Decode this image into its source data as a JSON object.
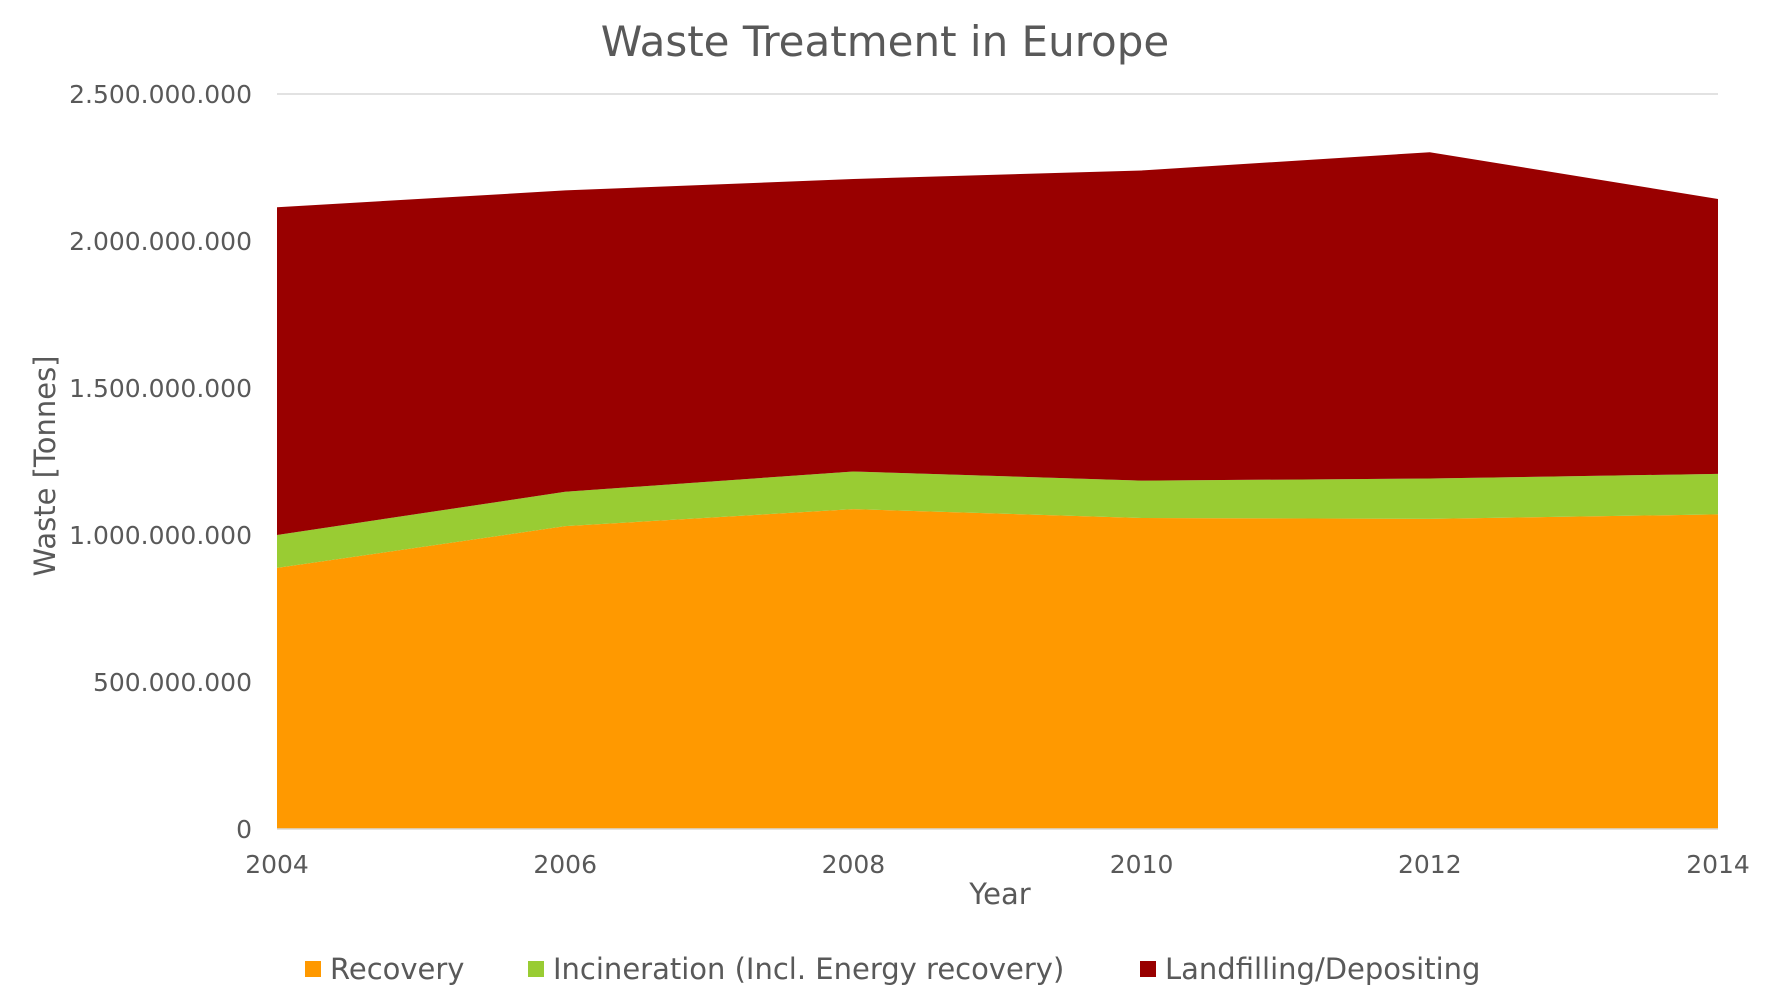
{
  "chart_data": {
    "type": "area",
    "stacked": true,
    "title": "Waste Treatment in Europe",
    "xlabel": "Year",
    "ylabel": "Waste [Tonnes]",
    "x": [
      2004,
      2006,
      2008,
      2010,
      2012,
      2014
    ],
    "x_tick_labels": [
      "2004",
      "2006",
      "2008",
      "2010",
      "2012",
      "2014"
    ],
    "xlim": [
      2004,
      2014
    ],
    "ylim": [
      0,
      2500000000
    ],
    "y_ticks": [
      0,
      500000000,
      1000000000,
      1500000000,
      2000000000,
      2500000000
    ],
    "y_tick_labels": [
      "0",
      "500.000.000",
      "1.000.000.000",
      "1.500.000.000",
      "2.000.000.000",
      "2.500.000.000"
    ],
    "grid": "horizontal-top",
    "legend_position": "bottom",
    "series": [
      {
        "name": "Recovery",
        "color": "#ff9900",
        "values": [
          888000000,
          1030000000,
          1088000000,
          1058000000,
          1055000000,
          1070000000
        ]
      },
      {
        "name": "Incineration (Incl. Energy recovery)",
        "color": "#99cc33",
        "values": [
          112000000,
          117000000,
          128000000,
          127000000,
          137000000,
          138000000
        ]
      },
      {
        "name": "Landfilling/Depositing",
        "color": "#990000",
        "values": [
          1115000000,
          1025000000,
          995000000,
          1055000000,
          1110000000,
          935000000
        ]
      }
    ]
  }
}
